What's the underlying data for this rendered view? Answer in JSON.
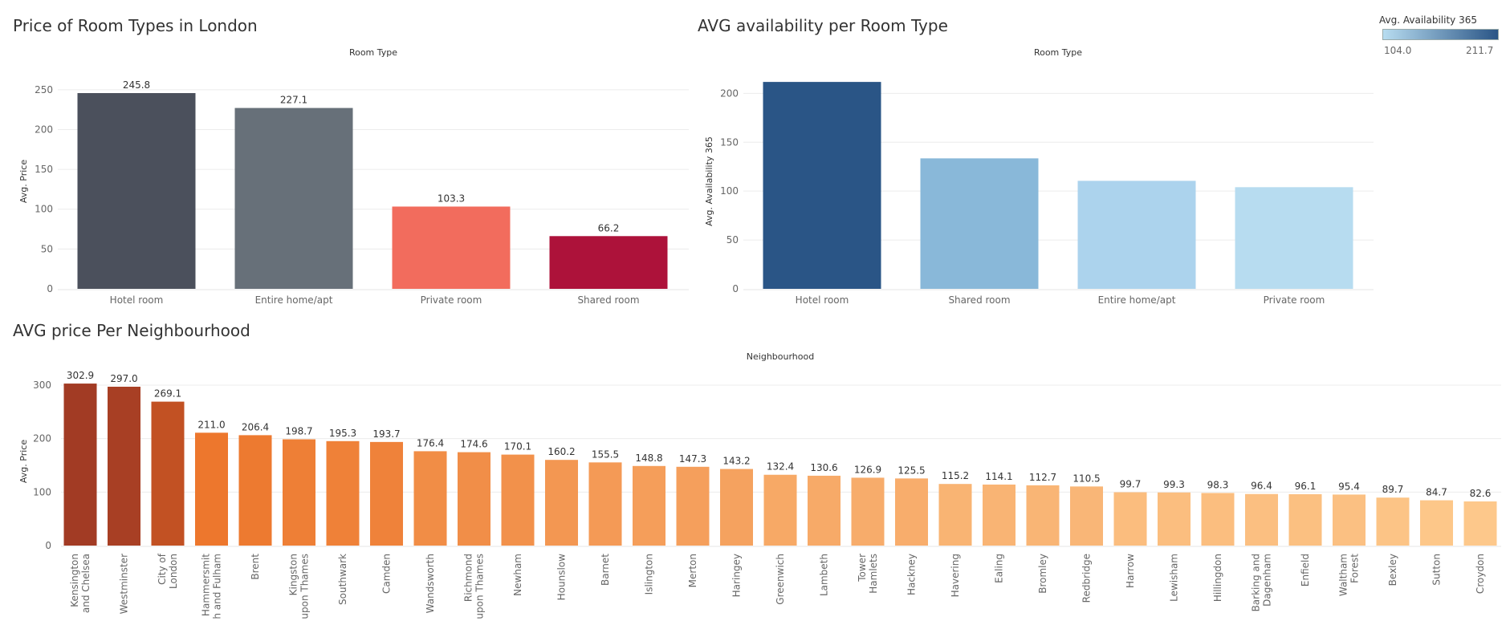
{
  "titles": {
    "chart1": "Price of Room Types in London",
    "chart2": "AVG availability per Room Type",
    "chart3": "AVG price Per Neighbourhood"
  },
  "legend": {
    "title": "Avg. Availability 365",
    "min_label": "104.0",
    "max_label": "211.7",
    "color_low": "#b7dcf0",
    "color_high": "#2a5586"
  },
  "chart_data": [
    {
      "type": "bar",
      "title": "Price of Room Types in London",
      "header": "Room Type",
      "ylabel": "Avg. Price",
      "categories": [
        "Hotel room",
        "Entire home/apt",
        "Private room",
        "Shared room"
      ],
      "values": [
        245.8,
        227.1,
        103.3,
        66.2
      ],
      "value_labels": [
        "245.8",
        "227.1",
        "103.3",
        "66.2"
      ],
      "colors": [
        "#4b505c",
        "#677079",
        "#f26c5d",
        "#ad123a"
      ],
      "yticks": [
        0,
        50,
        100,
        150,
        200,
        250
      ],
      "ylim": [
        0,
        270
      ],
      "grid": true
    },
    {
      "type": "bar",
      "title": "AVG availability per Room Type",
      "header": "Room Type",
      "ylabel": "Avg. Availability 365",
      "categories": [
        "Hotel room",
        "Shared room",
        "Entire home/apt",
        "Private room"
      ],
      "values": [
        211.7,
        133.5,
        110.5,
        104.0
      ],
      "colors": [
        "#2a5586",
        "#89b8d9",
        "#acd3ed",
        "#b7dcf0"
      ],
      "yticks": [
        0,
        50,
        100,
        150,
        200
      ],
      "ylim": [
        0,
        220
      ],
      "grid": true
    },
    {
      "type": "bar",
      "title": "AVG price Per Neighbourhood",
      "header": "Neighbourhood",
      "ylabel": "Avg. Price",
      "categories": [
        [
          "Kensington",
          "and Chelsea"
        ],
        [
          "Westminster"
        ],
        [
          "City of",
          "London"
        ],
        [
          "Hammersmit",
          "h and Fulham"
        ],
        [
          "Brent"
        ],
        [
          "Kingston",
          "upon Thames"
        ],
        [
          "Southwark"
        ],
        [
          "Camden"
        ],
        [
          "Wandsworth"
        ],
        [
          "Richmond",
          "upon Thames"
        ],
        [
          "Newham"
        ],
        [
          "Hounslow"
        ],
        [
          "Barnet"
        ],
        [
          "Islington"
        ],
        [
          "Merton"
        ],
        [
          "Haringey"
        ],
        [
          "Greenwich"
        ],
        [
          "Lambeth"
        ],
        [
          "Tower",
          "Hamlets"
        ],
        [
          "Hackney"
        ],
        [
          "Havering"
        ],
        [
          "Ealing"
        ],
        [
          "Bromley"
        ],
        [
          "Redbridge"
        ],
        [
          "Harrow"
        ],
        [
          "Lewisham"
        ],
        [
          "Hillingdon"
        ],
        [
          "Barking and",
          "Dagenham"
        ],
        [
          "Enfield"
        ],
        [
          "Waltham",
          "Forest"
        ],
        [
          "Bexley"
        ],
        [
          "Sutton"
        ],
        [
          "Croydon"
        ]
      ],
      "values": [
        302.9,
        297.0,
        269.1,
        211.0,
        206.4,
        198.7,
        195.3,
        193.7,
        176.4,
        174.6,
        170.1,
        160.2,
        155.5,
        148.8,
        147.3,
        143.2,
        132.4,
        130.6,
        126.9,
        125.5,
        115.2,
        114.1,
        112.7,
        110.5,
        99.7,
        99.3,
        98.3,
        96.4,
        96.1,
        95.4,
        89.7,
        84.7,
        82.6
      ],
      "value_labels": [
        "302.9",
        "297.0",
        "269.1",
        "211.0",
        "206.4",
        "198.7",
        "195.3",
        "193.7",
        "176.4",
        "174.6",
        "170.1",
        "160.2",
        "155.5",
        "148.8",
        "147.3",
        "143.2",
        "132.4",
        "130.6",
        "126.9",
        "125.5",
        "115.2",
        "114.1",
        "112.7",
        "110.5",
        "99.7",
        "99.3",
        "98.3",
        "96.4",
        "96.1",
        "95.4",
        "89.7",
        "84.7",
        "82.6"
      ],
      "color_range": [
        "#a23b24",
        "#eb6e22",
        "#fdc88b"
      ],
      "yticks": [
        0,
        100,
        200,
        300
      ],
      "ylim": [
        0,
        315
      ],
      "grid": true
    }
  ]
}
